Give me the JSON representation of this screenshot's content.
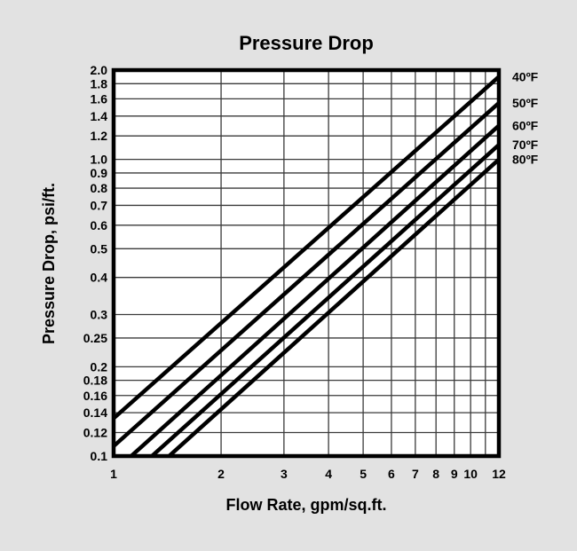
{
  "page": {
    "background": "#e2e2e2"
  },
  "chart": {
    "title": "Pressure Drop",
    "xlabel": "Flow Rate, gpm/sq.ft.",
    "ylabel": "Pressure Drop, psi/ft."
  },
  "chart_data": {
    "type": "line",
    "title": "Pressure Drop",
    "xlabel": "Flow Rate, gpm/sq.ft.",
    "ylabel": "Pressure Drop, psi/ft.",
    "x_scale": "log",
    "y_scale": "log",
    "xlim": [
      1,
      12
    ],
    "ylim": [
      0.1,
      2.0
    ],
    "grid": true,
    "legend_position": "right-outside",
    "x_ticks": [
      {
        "value": 1,
        "label": "1"
      },
      {
        "value": 2,
        "label": "2"
      },
      {
        "value": 3,
        "label": "3"
      },
      {
        "value": 4,
        "label": "4"
      },
      {
        "value": 5,
        "label": "5"
      },
      {
        "value": 6,
        "label": "6"
      },
      {
        "value": 7,
        "label": "7"
      },
      {
        "value": 8,
        "label": "8"
      },
      {
        "value": 9,
        "label": "9"
      },
      {
        "value": 10,
        "label": "10"
      },
      {
        "value": 11,
        "label": ""
      },
      {
        "value": 12,
        "label": "12"
      }
    ],
    "y_ticks": [
      {
        "value": 2.0,
        "label": "2.0"
      },
      {
        "value": 1.8,
        "label": "1.8"
      },
      {
        "value": 1.6,
        "label": "1.6"
      },
      {
        "value": 1.4,
        "label": "1.4"
      },
      {
        "value": 1.2,
        "label": "1.2"
      },
      {
        "value": 1.0,
        "label": "1.0"
      },
      {
        "value": 0.9,
        "label": "0.9"
      },
      {
        "value": 0.8,
        "label": "0.8"
      },
      {
        "value": 0.7,
        "label": "0.7"
      },
      {
        "value": 0.6,
        "label": "0.6"
      },
      {
        "value": 0.5,
        "label": "0.5"
      },
      {
        "value": 0.4,
        "label": "0.4"
      },
      {
        "value": 0.3,
        "label": "0.3"
      },
      {
        "value": 0.25,
        "label": "0.25"
      },
      {
        "value": 0.2,
        "label": "0.2"
      },
      {
        "value": 0.18,
        "label": "0.18"
      },
      {
        "value": 0.16,
        "label": "0.16"
      },
      {
        "value": 0.14,
        "label": "0.14"
      },
      {
        "value": 0.12,
        "label": "0.12"
      },
      {
        "value": 0.1,
        "label": "0.1"
      }
    ],
    "series": [
      {
        "name": "40ºF",
        "points": [
          [
            1.0,
            0.134
          ],
          [
            12,
            1.9
          ]
        ]
      },
      {
        "name": "50ºF",
        "points": [
          [
            1.0,
            0.108
          ],
          [
            12,
            1.55
          ]
        ]
      },
      {
        "name": "60ºF",
        "points": [
          [
            1.12,
            0.1
          ],
          [
            12,
            1.3
          ]
        ]
      },
      {
        "name": "70ºF",
        "points": [
          [
            1.28,
            0.1
          ],
          [
            12,
            1.12
          ]
        ]
      },
      {
        "name": "80ºF",
        "points": [
          [
            1.43,
            0.1
          ],
          [
            12,
            1.0
          ]
        ]
      }
    ],
    "colors": {
      "background": "#e2e2e2",
      "plot_background": "#ffffff",
      "gridline": "#3a3a3a",
      "axis_border": "#000000",
      "series_line": "#000000",
      "text": "#000000"
    }
  }
}
